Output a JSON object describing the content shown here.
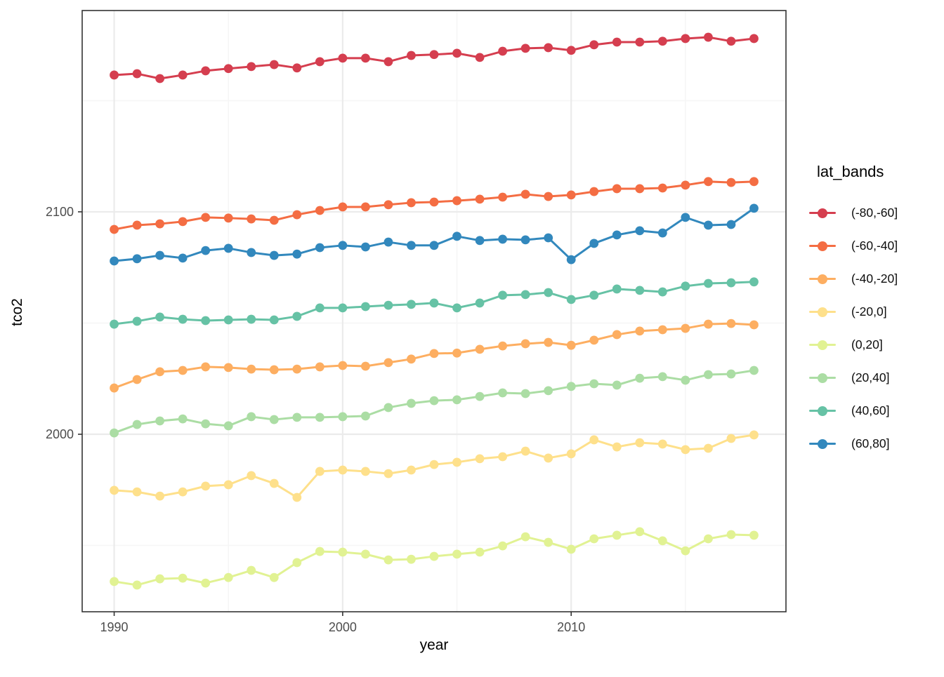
{
  "figure": {
    "xlabel": "year",
    "ylabel": "tco2",
    "legend_title": "lat_bands"
  },
  "colors": {
    "background": "#ffffff",
    "panel_background": "#ffffff",
    "panel_border": "#333333",
    "grid_major": "#ebebeb",
    "grid_minor": "#f6f6f6",
    "tick_mark": "#333333",
    "axis_text": "#4d4d4d",
    "axis_title": "#000000"
  },
  "chart_data": {
    "type": "line",
    "title": "",
    "xlabel": "year",
    "ylabel": "tco2",
    "legend_title": "lat_bands",
    "legend_position": "right",
    "grid": "major+minor",
    "marker": "circle",
    "x": [
      1990,
      1991,
      1992,
      1993,
      1994,
      1995,
      1996,
      1997,
      1998,
      1999,
      2000,
      2001,
      2002,
      2003,
      2004,
      2005,
      2006,
      2007,
      2008,
      2009,
      2010,
      2011,
      2012,
      2013,
      2014,
      2015,
      2016,
      2017,
      2018
    ],
    "x_ticks": [
      1990,
      2000,
      2010
    ],
    "x_minor_ticks": [
      1995,
      2005,
      2015
    ],
    "y_ticks": [
      2000,
      2100
    ],
    "y_minor_ticks": [
      1950,
      2050,
      2150
    ],
    "xlim": [
      1988.6,
      2019.4
    ],
    "ylim": [
      1920.2,
      2190.5
    ],
    "series": [
      {
        "name": "(-80,-60]",
        "color": "#d53e4f",
        "values": [
          2161.5,
          2162.1,
          2159.9,
          2161.5,
          2163.4,
          2164.4,
          2165.3,
          2166.2,
          2164.7,
          2167.5,
          2169.1,
          2169.1,
          2167.5,
          2170.3,
          2170.7,
          2171.3,
          2169.4,
          2172.2,
          2173.5,
          2173.8,
          2172.6,
          2175.1,
          2176.3,
          2176.3,
          2176.7,
          2177.9,
          2178.5,
          2176.7,
          2177.9
        ]
      },
      {
        "name": "(-60,-40]",
        "color": "#f46d43",
        "values": [
          2092.1,
          2094.0,
          2094.6,
          2095.6,
          2097.5,
          2097.2,
          2096.8,
          2096.2,
          2098.7,
          2100.6,
          2102.2,
          2102.2,
          2103.2,
          2104.1,
          2104.4,
          2105.0,
          2105.7,
          2106.6,
          2107.9,
          2106.9,
          2107.6,
          2109.1,
          2110.4,
          2110.4,
          2110.7,
          2112.0,
          2113.6,
          2113.2,
          2113.6
        ]
      },
      {
        "name": "(-40,-20]",
        "color": "#fdae61",
        "values": [
          2020.8,
          2024.6,
          2028.1,
          2028.7,
          2030.3,
          2030.0,
          2029.3,
          2029.0,
          2029.3,
          2030.3,
          2030.9,
          2030.6,
          2032.2,
          2033.8,
          2036.3,
          2036.5,
          2038.2,
          2039.7,
          2040.7,
          2041.3,
          2040.0,
          2042.3,
          2044.8,
          2046.4,
          2047.0,
          2047.6,
          2049.5,
          2049.8,
          2049.2
        ]
      },
      {
        "name": "(-20,0]",
        "color": "#fee08b",
        "values": [
          1974.8,
          1974.1,
          1972.2,
          1974.1,
          1976.7,
          1977.3,
          1981.4,
          1977.9,
          1971.6,
          1983.3,
          1983.9,
          1983.3,
          1982.3,
          1983.9,
          1986.4,
          1987.4,
          1989.0,
          1989.9,
          1992.4,
          1989.3,
          1991.2,
          1997.5,
          1994.3,
          1996.2,
          1995.6,
          1993.1,
          1993.7,
          1998.1,
          1999.7
        ]
      },
      {
        "name": "(0,20]",
        "color": "#e1f293",
        "values": [
          1933.8,
          1932.2,
          1935.0,
          1935.3,
          1933.1,
          1935.6,
          1938.8,
          1935.6,
          1942.3,
          1947.3,
          1947.0,
          1946.1,
          1943.5,
          1943.8,
          1945.1,
          1946.1,
          1947.0,
          1949.8,
          1953.9,
          1951.4,
          1948.3,
          1953.0,
          1954.6,
          1956.2,
          1952.1,
          1947.6,
          1953.0,
          1954.9,
          1954.6
        ]
      },
      {
        "name": "(20,40]",
        "color": "#abdda4",
        "values": [
          2000.6,
          2004.4,
          2006.0,
          2006.9,
          2004.7,
          2003.8,
          2007.9,
          2006.6,
          2007.6,
          2007.6,
          2007.9,
          2008.2,
          2012.0,
          2013.9,
          2015.1,
          2015.5,
          2017.0,
          2018.6,
          2018.3,
          2019.6,
          2021.5,
          2022.7,
          2022.1,
          2025.2,
          2025.9,
          2024.3,
          2026.8,
          2027.1,
          2028.7
        ]
      },
      {
        "name": "(40,60]",
        "color": "#66c2a5",
        "values": [
          2049.5,
          2050.8,
          2052.7,
          2051.7,
          2051.1,
          2051.4,
          2051.7,
          2051.4,
          2053.0,
          2056.8,
          2056.8,
          2057.4,
          2058.0,
          2058.4,
          2059.0,
          2056.8,
          2059.0,
          2062.5,
          2062.8,
          2063.7,
          2060.6,
          2062.5,
          2065.3,
          2064.7,
          2064.0,
          2066.6,
          2067.8,
          2068.1,
          2068.5
        ]
      },
      {
        "name": "(60,80]",
        "color": "#3288bd",
        "values": [
          2077.9,
          2078.9,
          2080.4,
          2079.2,
          2082.6,
          2083.6,
          2081.7,
          2080.4,
          2081.0,
          2083.9,
          2084.9,
          2084.2,
          2086.4,
          2084.9,
          2084.9,
          2089.0,
          2087.1,
          2087.7,
          2087.4,
          2088.3,
          2078.5,
          2085.8,
          2089.6,
          2091.5,
          2090.5,
          2097.5,
          2094.0,
          2094.3,
          2101.6
        ]
      }
    ]
  }
}
